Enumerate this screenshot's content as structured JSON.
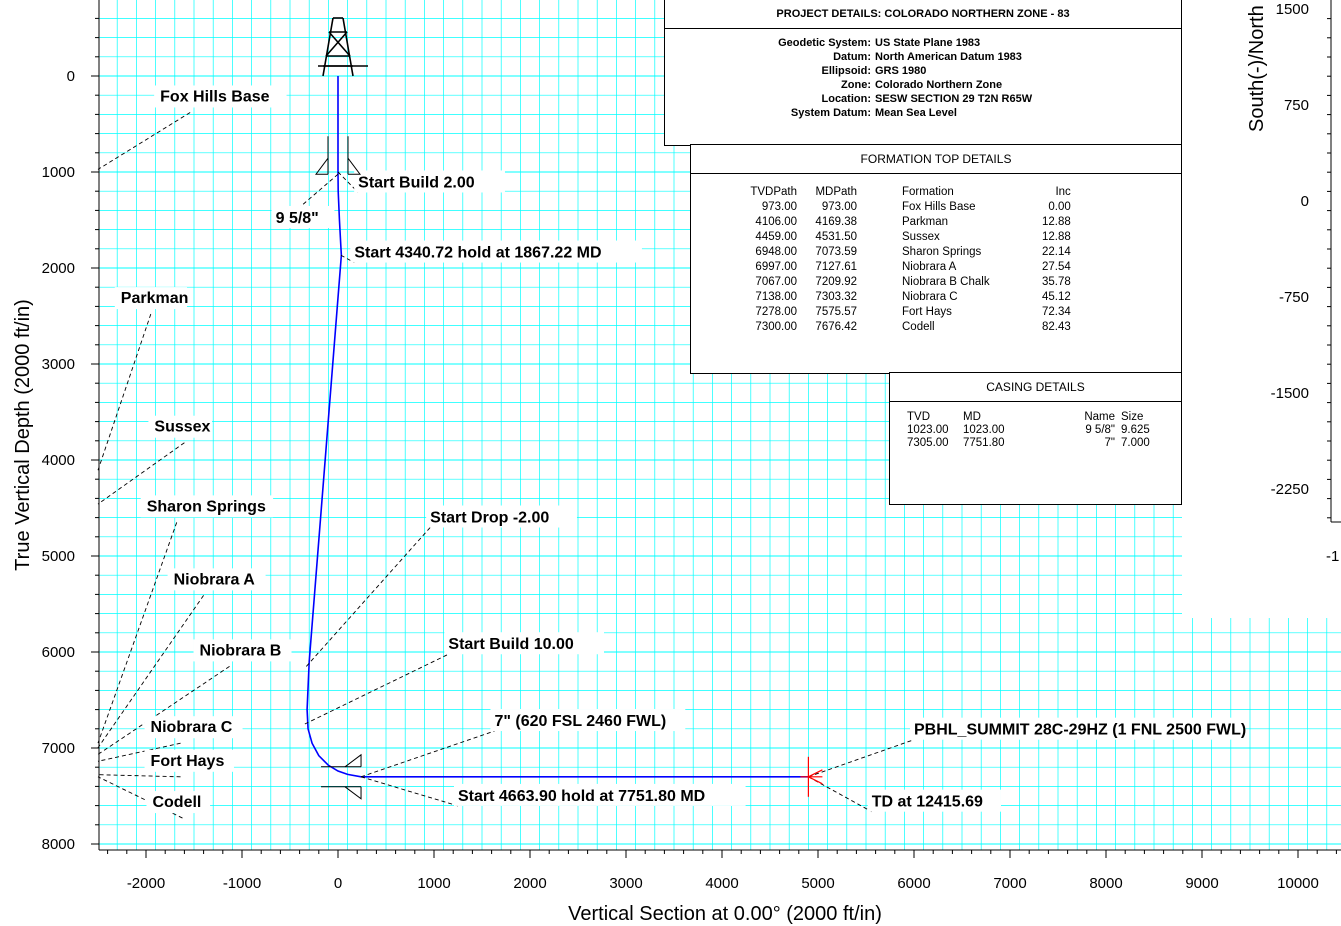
{
  "colors": {
    "grid": "#00ffff",
    "well_path": "#0000ff",
    "target": "#ff0000",
    "text": "#000000"
  },
  "chart_data": {
    "type": "line",
    "xlabel": "Vertical Section at 0.00° (2000 ft/in)",
    "ylabel": "True Vertical Depth (2000 ft/in)",
    "x_ticks": [
      -2000,
      -1000,
      0,
      1000,
      2000,
      3000,
      4000,
      5000,
      6000,
      7000,
      8000,
      9000,
      10000
    ],
    "y_ticks": [
      0,
      1000,
      2000,
      3000,
      4000,
      5000,
      6000,
      7000,
      8000
    ],
    "xlim": [
      -2500,
      10500
    ],
    "ylim": [
      8000,
      -700
    ],
    "y_inverted": true,
    "grid": true,
    "series": [
      {
        "x": [
          0,
          0,
          2,
          15,
          30,
          35,
          -300,
          -322,
          -312,
          -270,
          -200,
          -100,
          0,
          100,
          240,
          4900
        ],
        "y": [
          0,
          1000,
          1200,
          1500,
          1780,
          1867,
          6100,
          6600,
          6800,
          6950,
          7080,
          7180,
          7240,
          7275,
          7300,
          7300
        ]
      }
    ],
    "target": {
      "x": 4900,
      "y": 7300
    },
    "annotations": [
      {
        "text": "Start Build 2.00",
        "ax": 0,
        "ay": 1000,
        "tx": 210,
        "ty": 1130
      },
      {
        "text": "9 5/8\"",
        "ax": 0,
        "ay": 1023,
        "tx": -650,
        "ty": 1500
      },
      {
        "text": "Start 4340.72 hold at 1867.22 MD",
        "ax": 30,
        "ay": 1867,
        "tx": 170,
        "ty": 1860
      },
      {
        "text": "Start Drop -2.00",
        "ax": -330,
        "ay": 6150,
        "tx": 960,
        "ty": 4620
      },
      {
        "text": "Start Build 10.00",
        "ax": -345,
        "ay": 6750,
        "tx": 1150,
        "ty": 5940
      },
      {
        "text": "7\" (620 FSL 2460 FWL)",
        "ax": 240,
        "ay": 7300,
        "tx": 1630,
        "ty": 6740
      },
      {
        "text": "Start 4663.90 hold at 7751.80 MD",
        "ax": 240,
        "ay": 7300,
        "tx": 1250,
        "ty": 7520
      },
      {
        "text": "PBHL_SUMMIT 28C-29HZ (1 FNL 2500 FWL)",
        "ax": 4900,
        "ay": 7300,
        "tx": 6000,
        "ty": 6830
      },
      {
        "text": "TD at 12415.69",
        "ax": 4900,
        "ay": 7300,
        "tx": 5560,
        "ty": 7580
      }
    ],
    "formation_labels": [
      {
        "text": "Fox Hills Base",
        "lx": -1540,
        "ly": 380,
        "ax": -2500,
        "ay": 973
      },
      {
        "text": "Parkman",
        "lx": -1950,
        "ly": 2480,
        "ax": -2500,
        "ay": 4106
      },
      {
        "text": "Sussex",
        "lx": -1600,
        "ly": 3820,
        "ax": -2500,
        "ay": 4459
      },
      {
        "text": "Sharon Springs",
        "lx": -1680,
        "ly": 4650,
        "ax": -2500,
        "ay": 6948
      },
      {
        "text": "Niobrara A",
        "lx": -1400,
        "ly": 5410,
        "ax": -2500,
        "ay": 6997
      },
      {
        "text": "Niobrara B",
        "lx": -1130,
        "ly": 6150,
        "ax": -2500,
        "ay": 7067
      },
      {
        "text": "Niobrara C",
        "lx": -1640,
        "ly": 6950,
        "ax": -2500,
        "ay": 7138
      },
      {
        "text": "Fort Hays",
        "lx": -1640,
        "ly": 7300,
        "ax": -2500,
        "ay": 7278
      },
      {
        "text": "Codell",
        "lx": -1620,
        "ly": 7730,
        "ax": -2500,
        "ay": 7300
      }
    ],
    "inset_partial": {
      "ylabel": "South(-)/North",
      "y_ticks": [
        1500,
        750,
        0,
        -750,
        -1500,
        -2250
      ],
      "x_tick_partial": "-1"
    }
  },
  "project": {
    "title": "PROJECT  DETAILS:  COLORADO NORTHERN ZONE - 83",
    "rows": [
      {
        "key": "Geodetic System:",
        "value": "US State Plane 1983"
      },
      {
        "key": "Datum:",
        "value": "North American Datum 1983"
      },
      {
        "key": "Ellipsoid:",
        "value": "GRS 1980"
      },
      {
        "key": "Zone:",
        "value": "Colorado Northern Zone"
      },
      {
        "key": "Location:",
        "value": "SESW SECTION 29 T2N R65W"
      },
      {
        "key": "System Datum:",
        "value": "Mean Sea Level"
      }
    ]
  },
  "formation_table": {
    "title": "FORMATION TOP DETAILS",
    "headers": [
      "TVDPath",
      "MDPath",
      "Formation",
      "Inc"
    ],
    "rows": [
      [
        "973.00",
        "973.00",
        "Fox Hills Base",
        "0.00"
      ],
      [
        "4106.00",
        "4169.38",
        "Parkman",
        "12.88"
      ],
      [
        "4459.00",
        "4531.50",
        "Sussex",
        "12.88"
      ],
      [
        "6948.00",
        "7073.59",
        "Sharon Springs",
        "22.14"
      ],
      [
        "6997.00",
        "7127.61",
        "Niobrara A",
        "27.54"
      ],
      [
        "7067.00",
        "7209.92",
        "Niobrara B Chalk",
        "35.78"
      ],
      [
        "7138.00",
        "7303.32",
        "Niobrara C",
        "45.12"
      ],
      [
        "7278.00",
        "7575.57",
        "Fort Hays",
        "72.34"
      ],
      [
        "7300.00",
        "7676.42",
        "Codell",
        "82.43"
      ]
    ]
  },
  "casing_table": {
    "title": "CASING DETAILS",
    "headers": [
      "TVD",
      "MD",
      "Name",
      "Size"
    ],
    "rows": [
      [
        "1023.00",
        "1023.00",
        "9 5/8\"",
        "9.625"
      ],
      [
        "7305.00",
        "7751.80",
        "7\"",
        "7.000"
      ]
    ]
  }
}
